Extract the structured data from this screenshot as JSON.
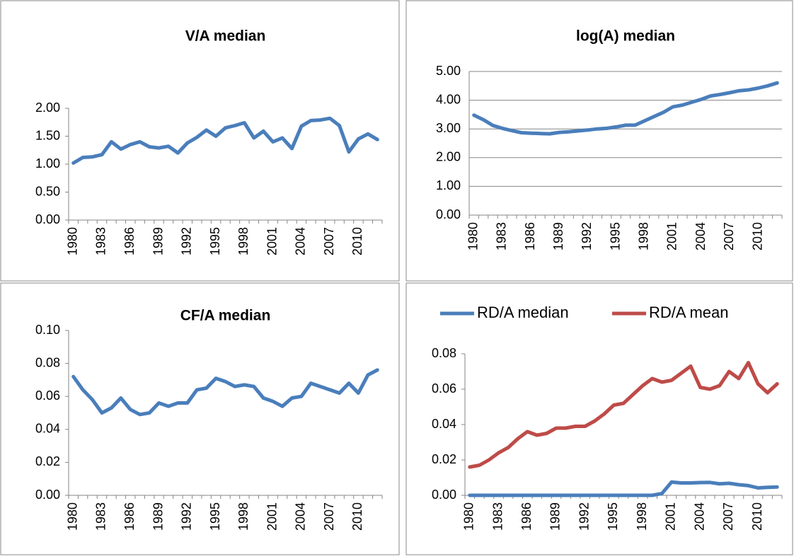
{
  "chart_data": [
    {
      "type": "line",
      "title": "V/A median",
      "categories": [
        "1980",
        null,
        null,
        "1983",
        null,
        null,
        "1986",
        null,
        null,
        "1989",
        null,
        null,
        "1992",
        null,
        null,
        "1995",
        null,
        null,
        "1998",
        null,
        null,
        "2001",
        null,
        null,
        "2004",
        null,
        null,
        "2007",
        null,
        null,
        "2010",
        null,
        null
      ],
      "series": [
        {
          "name": "V/A median",
          "color": "#4a7ebb",
          "values": [
            1.02,
            1.12,
            1.13,
            1.17,
            1.4,
            1.27,
            1.35,
            1.4,
            1.31,
            1.29,
            1.32,
            1.2,
            1.38,
            1.48,
            1.61,
            1.5,
            1.65,
            1.69,
            1.74,
            1.47,
            1.59,
            1.4,
            1.47,
            1.28,
            1.68,
            1.78,
            1.79,
            1.82,
            1.69,
            1.22,
            1.45,
            1.54,
            1.44
          ]
        }
      ],
      "ylim": [
        0,
        2
      ],
      "yticks": [
        {
          "value": 0,
          "label": "0.00"
        },
        {
          "value": 0.5,
          "label": "0.50"
        },
        {
          "value": 1,
          "label": "1.00"
        },
        {
          "value": 1.5,
          "label": "1.50"
        },
        {
          "value": 2,
          "label": "2.00"
        }
      ],
      "grid": false
    },
    {
      "type": "line",
      "title": "log(A) median",
      "categories": [
        "1980",
        null,
        null,
        "1983",
        null,
        null,
        "1986",
        null,
        null,
        "1989",
        null,
        null,
        "1992",
        null,
        null,
        "1995",
        null,
        null,
        "1998",
        null,
        null,
        "2001",
        null,
        null,
        "2004",
        null,
        null,
        "2007",
        null,
        null,
        "2010",
        null,
        null
      ],
      "series": [
        {
          "name": "log(A) median",
          "color": "#4a7ebb",
          "values": [
            3.48,
            3.32,
            3.12,
            3.02,
            2.94,
            2.87,
            2.85,
            2.84,
            2.83,
            2.88,
            2.9,
            2.93,
            2.96,
            3.0,
            3.02,
            3.07,
            3.13,
            3.13,
            3.28,
            3.43,
            3.58,
            3.77,
            3.83,
            3.93,
            4.03,
            4.15,
            4.2,
            4.26,
            4.33,
            4.36,
            4.42,
            4.5,
            4.6
          ]
        }
      ],
      "ylim": [
        0,
        5
      ],
      "yticks": [
        {
          "value": 0,
          "label": "0.00"
        },
        {
          "value": 1,
          "label": "1.00"
        },
        {
          "value": 2,
          "label": "2.00"
        },
        {
          "value": 3,
          "label": "3.00"
        },
        {
          "value": 4,
          "label": "4.00"
        },
        {
          "value": 5,
          "label": "5.00"
        }
      ],
      "grid": true
    },
    {
      "type": "line",
      "title": "CF/A median",
      "categories": [
        "1980",
        null,
        null,
        "1983",
        null,
        null,
        "1986",
        null,
        null,
        "1989",
        null,
        null,
        "1992",
        null,
        null,
        "1995",
        null,
        null,
        "1998",
        null,
        null,
        "2001",
        null,
        null,
        "2004",
        null,
        null,
        "2007",
        null,
        null,
        "2010",
        null,
        null
      ],
      "series": [
        {
          "name": "CF/A median",
          "color": "#4a7ebb",
          "values": [
            0.072,
            0.064,
            0.058,
            0.05,
            0.053,
            0.059,
            0.052,
            0.049,
            0.05,
            0.056,
            0.054,
            0.056,
            0.056,
            0.064,
            0.065,
            0.071,
            0.069,
            0.066,
            0.067,
            0.066,
            0.059,
            0.057,
            0.054,
            0.059,
            0.06,
            0.068,
            0.066,
            0.064,
            0.062,
            0.068,
            0.062,
            0.073,
            0.076
          ]
        }
      ],
      "ylim": [
        0,
        0.1
      ],
      "yticks": [
        {
          "value": 0,
          "label": "0.00"
        },
        {
          "value": 0.02,
          "label": "0.02"
        },
        {
          "value": 0.04,
          "label": "0.04"
        },
        {
          "value": 0.06,
          "label": "0.06"
        },
        {
          "value": 0.08,
          "label": "0.08"
        },
        {
          "value": 0.1,
          "label": "0.10"
        }
      ],
      "grid": false
    },
    {
      "type": "line",
      "categories": [
        "1980",
        null,
        null,
        "1983",
        null,
        null,
        "1986",
        null,
        null,
        "1989",
        null,
        null,
        "1992",
        null,
        null,
        "1995",
        null,
        null,
        "1998",
        null,
        null,
        "2001",
        null,
        null,
        "2004",
        null,
        null,
        "2007",
        null,
        null,
        "2010",
        null,
        null
      ],
      "series": [
        {
          "name": "RD/A median",
          "color": "#4a7ebb",
          "values": [
            0,
            0,
            0,
            0,
            0,
            0,
            0,
            0,
            0,
            0,
            0,
            0,
            0,
            0,
            0,
            0,
            0,
            0,
            0,
            0,
            0.001,
            0.0075,
            0.007,
            0.007,
            0.0072,
            0.0073,
            0.0065,
            0.0068,
            0.006,
            0.0055,
            0.0042,
            0.0045,
            0.0047
          ]
        },
        {
          "name": "RD/A mean",
          "color": "#be4b48",
          "values": [
            0.016,
            0.017,
            0.02,
            0.024,
            0.027,
            0.032,
            0.036,
            0.034,
            0.035,
            0.038,
            0.038,
            0.039,
            0.039,
            0.042,
            0.046,
            0.051,
            0.052,
            0.057,
            0.062,
            0.066,
            0.064,
            0.065,
            0.069,
            0.073,
            0.061,
            0.06,
            0.062,
            0.07,
            0.066,
            0.075,
            0.063,
            0.058,
            0.063
          ]
        }
      ],
      "ylim": [
        0,
        0.08
      ],
      "yticks": [
        {
          "value": 0,
          "label": "0.00"
        },
        {
          "value": 0.02,
          "label": "0.02"
        },
        {
          "value": 0.04,
          "label": "0.04"
        },
        {
          "value": 0.06,
          "label": "0.06"
        },
        {
          "value": 0.08,
          "label": "0.08"
        }
      ],
      "grid": false,
      "legend": "top"
    }
  ]
}
